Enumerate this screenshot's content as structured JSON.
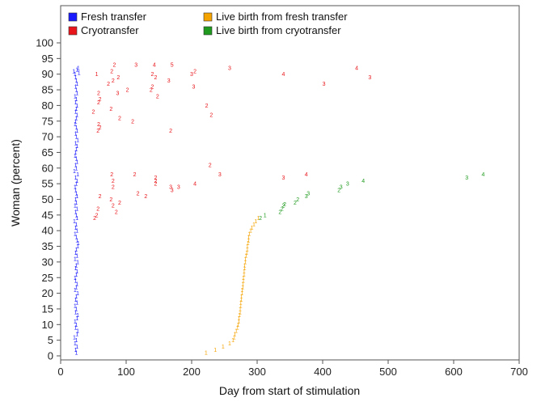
{
  "legend": {
    "items": [
      {
        "label": "Fresh transfer",
        "color": "#1a1aff"
      },
      {
        "label": "Cryotransfer",
        "color": "#e8161b"
      },
      {
        "label": "Live birth from fresh transfer",
        "color": "#f5a300"
      },
      {
        "label": "Live birth from cryotransfer",
        "color": "#1f9a1f"
      }
    ]
  },
  "chart_data": {
    "type": "scatter",
    "xlabel": "Day from start of stimulation",
    "ylabel": "Woman (percent)",
    "xlim": [
      0,
      700
    ],
    "ylim": [
      0,
      100
    ],
    "xticks": [
      0,
      100,
      200,
      300,
      400,
      500,
      600,
      700
    ],
    "yticks": [
      0,
      5,
      10,
      15,
      20,
      25,
      30,
      35,
      40,
      45,
      50,
      55,
      60,
      65,
      70,
      75,
      80,
      85,
      90,
      95,
      100
    ],
    "grid": false,
    "legend_position": "top-left",
    "marker_text": "transfer number",
    "series": [
      {
        "name": "Fresh transfer",
        "color": "#1a1aff",
        "points": [
          [
            24,
            1
          ],
          [
            23,
            2
          ],
          [
            25,
            3
          ],
          [
            22,
            4
          ],
          [
            24,
            5
          ],
          [
            21,
            6
          ],
          [
            25,
            7
          ],
          [
            26,
            8
          ],
          [
            23,
            9
          ],
          [
            24,
            10
          ],
          [
            22,
            11
          ],
          [
            25,
            12
          ],
          [
            26,
            13
          ],
          [
            23,
            14
          ],
          [
            24,
            15
          ],
          [
            22,
            16
          ],
          [
            25,
            17
          ],
          [
            23,
            18
          ],
          [
            24,
            19
          ],
          [
            26,
            20
          ],
          [
            22,
            21
          ],
          [
            24,
            22
          ],
          [
            25,
            23
          ],
          [
            23,
            24
          ],
          [
            22,
            25
          ],
          [
            24,
            26
          ],
          [
            25,
            27
          ],
          [
            23,
            28
          ],
          [
            24,
            29
          ],
          [
            26,
            30
          ],
          [
            22,
            31
          ],
          [
            25,
            32
          ],
          [
            23,
            33
          ],
          [
            24,
            34
          ],
          [
            26,
            35
          ],
          [
            27,
            36
          ],
          [
            25,
            37
          ],
          [
            24,
            38
          ],
          [
            22,
            39
          ],
          [
            25,
            40
          ],
          [
            23,
            41
          ],
          [
            24,
            42
          ],
          [
            21,
            43
          ],
          [
            25,
            44
          ],
          [
            24,
            45
          ],
          [
            23,
            46
          ],
          [
            25,
            47
          ],
          [
            22,
            48
          ],
          [
            24,
            49
          ],
          [
            23,
            50
          ],
          [
            25,
            51
          ],
          [
            24,
            52
          ],
          [
            23,
            53
          ],
          [
            22,
            54
          ],
          [
            24,
            55
          ],
          [
            25,
            56
          ],
          [
            23,
            57
          ],
          [
            26,
            58
          ],
          [
            21,
            59
          ],
          [
            24,
            60
          ],
          [
            23,
            61
          ],
          [
            25,
            62
          ],
          [
            24,
            63
          ],
          [
            22,
            64
          ],
          [
            23,
            65
          ],
          [
            24,
            66
          ],
          [
            25,
            67
          ],
          [
            23,
            68
          ],
          [
            26,
            69
          ],
          [
            24,
            70
          ],
          [
            23,
            71
          ],
          [
            25,
            72
          ],
          [
            24,
            73
          ],
          [
            22,
            74
          ],
          [
            23,
            75
          ],
          [
            24,
            76
          ],
          [
            25,
            77
          ],
          [
            23,
            78
          ],
          [
            24,
            79
          ],
          [
            25,
            80
          ],
          [
            23,
            81
          ],
          [
            24,
            82
          ],
          [
            22,
            83
          ],
          [
            25,
            84
          ],
          [
            24,
            85
          ],
          [
            23,
            86
          ],
          [
            25,
            87
          ],
          [
            24,
            88
          ],
          [
            23,
            89
          ],
          [
            22,
            90
          ],
          [
            28,
            90.5
          ],
          [
            20,
            91
          ],
          [
            25,
            91.5
          ],
          [
            27,
            92
          ]
        ],
        "labels": [
          "1",
          "1",
          "1",
          "1",
          "1",
          "1",
          "1",
          "1",
          "1",
          "1",
          "1",
          "1",
          "1",
          "1",
          "1",
          "1",
          "1",
          "1",
          "1",
          "1",
          "1",
          "1",
          "1",
          "1",
          "1",
          "1",
          "1",
          "1",
          "1",
          "1",
          "1",
          "1",
          "1",
          "1",
          "1",
          "1",
          "1",
          "1",
          "1",
          "1",
          "1",
          "1",
          "1",
          "1",
          "1",
          "1",
          "1",
          "1",
          "1",
          "1",
          "1",
          "1",
          "1",
          "1",
          "1",
          "1",
          "1",
          "1",
          "1",
          "1",
          "1",
          "1",
          "1",
          "1",
          "1",
          "1",
          "1",
          "1",
          "1",
          "1",
          "1",
          "1",
          "1",
          "1",
          "1",
          "1",
          "1",
          "1",
          "1",
          "1",
          "1",
          "1",
          "1",
          "1",
          "1",
          "1",
          "1",
          "1",
          "1",
          "1",
          "1",
          "1",
          "1",
          "1"
        ]
      },
      {
        "name": "Cryotransfer",
        "color": "#e8161b",
        "points": [
          [
            52,
            44
          ],
          [
            55,
            45
          ],
          [
            57,
            47
          ],
          [
            85,
            46
          ],
          [
            90,
            49
          ],
          [
            80,
            48
          ],
          [
            77,
            50
          ],
          [
            60,
            51
          ],
          [
            118,
            52
          ],
          [
            130,
            51
          ],
          [
            80,
            54
          ],
          [
            145,
            55
          ],
          [
            168,
            54
          ],
          [
            170,
            53
          ],
          [
            180,
            54
          ],
          [
            205,
            55
          ],
          [
            145,
            56
          ],
          [
            80,
            56
          ],
          [
            145,
            57
          ],
          [
            78,
            58
          ],
          [
            113,
            58
          ],
          [
            243,
            58
          ],
          [
            228,
            61
          ],
          [
            340,
            57
          ],
          [
            375,
            58
          ],
          [
            57,
            72
          ],
          [
            60,
            73
          ],
          [
            58,
            74
          ],
          [
            168,
            72
          ],
          [
            110,
            75
          ],
          [
            90,
            76
          ],
          [
            230,
            77
          ],
          [
            50,
            78
          ],
          [
            77,
            79
          ],
          [
            223,
            80
          ],
          [
            58,
            81
          ],
          [
            60,
            82
          ],
          [
            148,
            83
          ],
          [
            58,
            84
          ],
          [
            87,
            84
          ],
          [
            102,
            85
          ],
          [
            138,
            85
          ],
          [
            140,
            86
          ],
          [
            203,
            86
          ],
          [
            73,
            87
          ],
          [
            80,
            88
          ],
          [
            165,
            88
          ],
          [
            88,
            89
          ],
          [
            145,
            89
          ],
          [
            140,
            90
          ],
          [
            55,
            90
          ],
          [
            200,
            90
          ],
          [
            340,
            90
          ],
          [
            78,
            91
          ],
          [
            205,
            91
          ],
          [
            258,
            92
          ],
          [
            472,
            89
          ],
          [
            402,
            87
          ],
          [
            82,
            93
          ],
          [
            115,
            93
          ],
          [
            143,
            93
          ],
          [
            170,
            93
          ],
          [
            452,
            92
          ]
        ],
        "labels": [
          "2",
          "2",
          "2",
          "2",
          "2",
          "2",
          "2",
          "2",
          "2",
          "2",
          "2",
          "2",
          "3",
          "3",
          "3",
          "4",
          "2",
          "2",
          "2",
          "2",
          "2",
          "3",
          "2",
          "3",
          "4",
          "2",
          "2",
          "2",
          "2",
          "2",
          "2",
          "2",
          "2",
          "2",
          "2",
          "2",
          "2",
          "2",
          "2",
          "3",
          "2",
          "2",
          "2",
          "3",
          "2",
          "2",
          "3",
          "2",
          "2",
          "2",
          "1",
          "3",
          "4",
          "2",
          "2",
          "3",
          "3",
          "3",
          "2",
          "3",
          "4",
          "5",
          "4"
        ]
      },
      {
        "name": "Live birth from fresh transfer",
        "color": "#f5a300",
        "points": [
          [
            222,
            1
          ],
          [
            236,
            2
          ],
          [
            248,
            3
          ],
          [
            258,
            4
          ],
          [
            263,
            5
          ],
          [
            265,
            6
          ],
          [
            266,
            7
          ],
          [
            268,
            8
          ],
          [
            270,
            9
          ],
          [
            271,
            10
          ],
          [
            272,
            11
          ],
          [
            272,
            12
          ],
          [
            273,
            13
          ],
          [
            274,
            14
          ],
          [
            274,
            15
          ],
          [
            275,
            16
          ],
          [
            275,
            17
          ],
          [
            276,
            18
          ],
          [
            276,
            19
          ],
          [
            277,
            20
          ],
          [
            277,
            21
          ],
          [
            278,
            22
          ],
          [
            278,
            23
          ],
          [
            279,
            24
          ],
          [
            279,
            25
          ],
          [
            280,
            26
          ],
          [
            280,
            27
          ],
          [
            281,
            28
          ],
          [
            281,
            29
          ],
          [
            282,
            30
          ],
          [
            282,
            31
          ],
          [
            283,
            32
          ],
          [
            284,
            33
          ],
          [
            285,
            34
          ],
          [
            285,
            35
          ],
          [
            286,
            36
          ],
          [
            287,
            37
          ],
          [
            287,
            38
          ],
          [
            288,
            39
          ],
          [
            290,
            40
          ],
          [
            292,
            41
          ],
          [
            295,
            42
          ],
          [
            298,
            43
          ],
          [
            302,
            44
          ]
        ],
        "labels": [
          "1",
          "1",
          "1",
          "1",
          "1",
          "1",
          "1",
          "1",
          "1",
          "1",
          "1",
          "1",
          "1",
          "1",
          "1",
          "1",
          "1",
          "1",
          "1",
          "1",
          "1",
          "1",
          "1",
          "1",
          "1",
          "1",
          "1",
          "1",
          "1",
          "1",
          "1",
          "1",
          "1",
          "1",
          "1",
          "1",
          "1",
          "1",
          "1",
          "1",
          "1",
          "1",
          "1",
          "1"
        ]
      },
      {
        "name": "Live birth from cryotransfer",
        "color": "#1f9a1f",
        "points": [
          [
            305,
            44
          ],
          [
            312,
            45
          ],
          [
            335,
            46
          ],
          [
            338,
            47
          ],
          [
            340,
            48
          ],
          [
            342,
            48.5
          ],
          [
            358,
            49
          ],
          [
            362,
            50
          ],
          [
            375,
            51
          ],
          [
            378,
            52
          ],
          [
            425,
            53
          ],
          [
            428,
            54
          ],
          [
            438,
            55
          ],
          [
            462,
            56
          ],
          [
            620,
            57
          ],
          [
            645,
            58
          ]
        ],
        "labels": [
          "2",
          "1",
          "2",
          "2",
          "2",
          "2",
          "2",
          "2",
          "3",
          "3",
          "2",
          "3",
          "3",
          "4",
          "3",
          "4"
        ]
      }
    ]
  }
}
